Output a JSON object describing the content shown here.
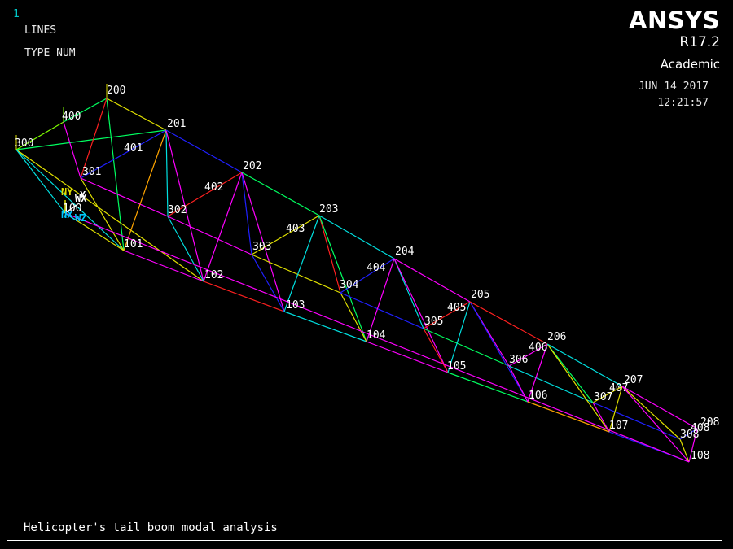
{
  "window": {
    "number": "1"
  },
  "plot_info": {
    "entity_type": "LINES",
    "numbering": "TYPE NUM"
  },
  "branding": {
    "product": "ANSYS",
    "release": "R17.2",
    "edition": "Academic"
  },
  "timestamp": {
    "date": "JUN 14 2017",
    "time": "12:21:57"
  },
  "title": "Helicopter's tail boom modal analysis",
  "triad": {
    "labels": [
      "NY",
      "WX",
      "X",
      "NX",
      "WZ"
    ],
    "colors": [
      "#e0e000",
      "#ffffff",
      "#ffffff",
      "#00c8ff",
      "#00c8ff"
    ]
  },
  "keypoints": [
    {
      "id": "100",
      "label": "100"
    },
    {
      "id": "101",
      "label": "101"
    },
    {
      "id": "102",
      "label": "102"
    },
    {
      "id": "103",
      "label": "103"
    },
    {
      "id": "104",
      "label": "104"
    },
    {
      "id": "105",
      "label": "105"
    },
    {
      "id": "106",
      "label": "106"
    },
    {
      "id": "107",
      "label": "107"
    },
    {
      "id": "108",
      "label": "108"
    },
    {
      "id": "200",
      "label": "200"
    },
    {
      "id": "201",
      "label": "201"
    },
    {
      "id": "202",
      "label": "202"
    },
    {
      "id": "203",
      "label": "203"
    },
    {
      "id": "204",
      "label": "204"
    },
    {
      "id": "205",
      "label": "205"
    },
    {
      "id": "206",
      "label": "206"
    },
    {
      "id": "207",
      "label": "207"
    },
    {
      "id": "208",
      "label": "208"
    },
    {
      "id": "300",
      "label": "300"
    },
    {
      "id": "301",
      "label": "301"
    },
    {
      "id": "302",
      "label": "302"
    },
    {
      "id": "303",
      "label": "303"
    },
    {
      "id": "304",
      "label": "304"
    },
    {
      "id": "305",
      "label": "305"
    },
    {
      "id": "306",
      "label": "306"
    },
    {
      "id": "307",
      "label": "307"
    },
    {
      "id": "308",
      "label": "308"
    },
    {
      "id": "400",
      "label": "400"
    },
    {
      "id": "401",
      "label": "401"
    },
    {
      "id": "402",
      "label": "402"
    },
    {
      "id": "403",
      "label": "403"
    },
    {
      "id": "404",
      "label": "404"
    },
    {
      "id": "405",
      "label": "405"
    },
    {
      "id": "406",
      "label": "406"
    },
    {
      "id": "407",
      "label": "407"
    },
    {
      "id": "408",
      "label": "408"
    }
  ],
  "lines": [
    {
      "from": "300",
      "to": "400",
      "color": "#7fff00"
    },
    {
      "from": "300",
      "to": "101",
      "color": "#00e0e0"
    },
    {
      "from": "300",
      "to": "102",
      "color": "#e0e000"
    },
    {
      "from": "300",
      "to": "201",
      "color": "#00ff60"
    },
    {
      "from": "400",
      "to": "200",
      "color": "#00ff60"
    },
    {
      "from": "400",
      "to": "301",
      "color": "#ff00ff"
    },
    {
      "from": "200",
      "to": "201",
      "color": "#e0e000"
    },
    {
      "from": "200",
      "to": "101",
      "color": "#00ff60"
    },
    {
      "from": "200",
      "to": "301",
      "color": "#ff2020"
    },
    {
      "from": "301",
      "to": "201",
      "color": "#2020ff"
    },
    {
      "from": "301",
      "to": "101",
      "color": "#e0e000"
    },
    {
      "from": "301",
      "to": "302",
      "color": "#ff00ff"
    },
    {
      "from": "101",
      "to": "201",
      "color": "#ffa500"
    },
    {
      "from": "201",
      "to": "302",
      "color": "#00e0e0"
    },
    {
      "from": "201",
      "to": "102",
      "color": "#ff00ff"
    },
    {
      "from": "201",
      "to": "202",
      "color": "#2020ff"
    },
    {
      "from": "101",
      "to": "102",
      "color": "#ff00ff"
    },
    {
      "from": "302",
      "to": "102",
      "color": "#00e0e0"
    },
    {
      "from": "302",
      "to": "202",
      "color": "#ff2020"
    },
    {
      "from": "302",
      "to": "303",
      "color": "#ff00ff"
    },
    {
      "from": "102",
      "to": "202",
      "color": "#ff00ff"
    },
    {
      "from": "102",
      "to": "103",
      "color": "#ff2020"
    },
    {
      "from": "202",
      "to": "303",
      "color": "#2020ff"
    },
    {
      "from": "202",
      "to": "103",
      "color": "#ff00ff"
    },
    {
      "from": "202",
      "to": "203",
      "color": "#00ff60"
    },
    {
      "from": "303",
      "to": "103",
      "color": "#2020ff"
    },
    {
      "from": "303",
      "to": "203",
      "color": "#e0e000"
    },
    {
      "from": "303",
      "to": "304",
      "color": "#e0e000"
    },
    {
      "from": "103",
      "to": "203",
      "color": "#00e0e0"
    },
    {
      "from": "103",
      "to": "104",
      "color": "#00e0e0"
    },
    {
      "from": "203",
      "to": "304",
      "color": "#ff2020"
    },
    {
      "from": "203",
      "to": "104",
      "color": "#00ff60"
    },
    {
      "from": "203",
      "to": "204",
      "color": "#00e0e0"
    },
    {
      "from": "304",
      "to": "104",
      "color": "#e0e000"
    },
    {
      "from": "304",
      "to": "204",
      "color": "#2020ff"
    },
    {
      "from": "304",
      "to": "305",
      "color": "#2020ff"
    },
    {
      "from": "104",
      "to": "204",
      "color": "#ff00ff"
    },
    {
      "from": "104",
      "to": "105",
      "color": "#ff00ff"
    },
    {
      "from": "204",
      "to": "305",
      "color": "#00e0e0"
    },
    {
      "from": "204",
      "to": "105",
      "color": "#ff00ff"
    },
    {
      "from": "204",
      "to": "205",
      "color": "#ff00ff"
    },
    {
      "from": "305",
      "to": "105",
      "color": "#ff2020"
    },
    {
      "from": "305",
      "to": "205",
      "color": "#ff2020"
    },
    {
      "from": "305",
      "to": "306",
      "color": "#00ff60"
    },
    {
      "from": "105",
      "to": "205",
      "color": "#00e0e0"
    },
    {
      "from": "105",
      "to": "106",
      "color": "#00ff60"
    },
    {
      "from": "205",
      "to": "306",
      "color": "#ff00ff"
    },
    {
      "from": "205",
      "to": "106",
      "color": "#2020ff"
    },
    {
      "from": "205",
      "to": "206",
      "color": "#ff2020"
    },
    {
      "from": "306",
      "to": "106",
      "color": "#ff00ff"
    },
    {
      "from": "306",
      "to": "206",
      "color": "#ff00ff"
    },
    {
      "from": "306",
      "to": "307",
      "color": "#00e0e0"
    },
    {
      "from": "106",
      "to": "206",
      "color": "#ff00ff"
    },
    {
      "from": "106",
      "to": "107",
      "color": "#ffa500"
    },
    {
      "from": "206",
      "to": "307",
      "color": "#00ff60"
    },
    {
      "from": "206",
      "to": "107",
      "color": "#e0e000"
    },
    {
      "from": "206",
      "to": "207",
      "color": "#00e0e0"
    },
    {
      "from": "307",
      "to": "107",
      "color": "#ff00ff"
    },
    {
      "from": "307",
      "to": "207",
      "color": "#e0e000"
    },
    {
      "from": "307",
      "to": "308",
      "color": "#2020ff"
    },
    {
      "from": "107",
      "to": "207",
      "color": "#e0e000"
    },
    {
      "from": "107",
      "to": "108",
      "color": "#2020ff"
    },
    {
      "from": "207",
      "to": "308",
      "color": "#e0e000"
    },
    {
      "from": "207",
      "to": "108",
      "color": "#ff00ff"
    },
    {
      "from": "207",
      "to": "208",
      "color": "#ff00ff"
    },
    {
      "from": "308",
      "to": "108",
      "color": "#e0e000"
    },
    {
      "from": "308",
      "to": "208",
      "color": "#2020ff"
    },
    {
      "from": "108",
      "to": "208",
      "color": "#ff00ff"
    },
    {
      "from": "300",
      "to": "100",
      "color": "#00e0e0"
    },
    {
      "from": "100",
      "to": "108",
      "color": "#ff00ff"
    },
    {
      "from": "100",
      "to": "101",
      "color": "#e0e000"
    }
  ]
}
